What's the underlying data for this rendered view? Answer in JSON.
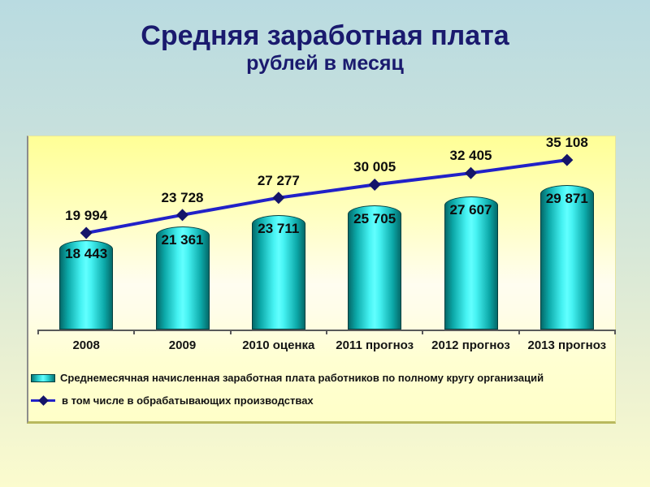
{
  "slide": {
    "title": "Средняя заработная плата",
    "subtitle": "рублей в месяц"
  },
  "chart_data": {
    "type": "bar",
    "title": "Средняя заработная плата, рублей в месяц",
    "categories": [
      "2008",
      "2009",
      "2010 оценка",
      "2011 прогноз",
      "2012 прогноз",
      "2013 прогноз"
    ],
    "series": [
      {
        "name": "Среднемесячная начисленная заработная плата работников по полному кругу организаций",
        "type": "bar",
        "values": [
          18443,
          21361,
          23711,
          25705,
          27607,
          29871
        ],
        "labels": [
          "18 443",
          "21 361",
          "23 711",
          "25 705",
          "27 607",
          "29 871"
        ]
      },
      {
        "name": "в том числе в обрабатывающих производствах",
        "type": "line",
        "values": [
          19994,
          23728,
          27277,
          30005,
          32405,
          35108
        ],
        "labels": [
          "19 994",
          "23 728",
          "27 277",
          "30 005",
          "32 405",
          "35 108"
        ]
      }
    ],
    "ylim": [
      0,
      40000
    ],
    "grid": false,
    "legend_position": "bottom",
    "colors": {
      "bar_center": "#62ffff",
      "bar_edge": "#046a6a",
      "line": "#2121c8",
      "marker": "#14146a",
      "panel_top": "#ffff96",
      "title_text": "#1a1a6e",
      "label_text": "#0d0d0d"
    }
  }
}
